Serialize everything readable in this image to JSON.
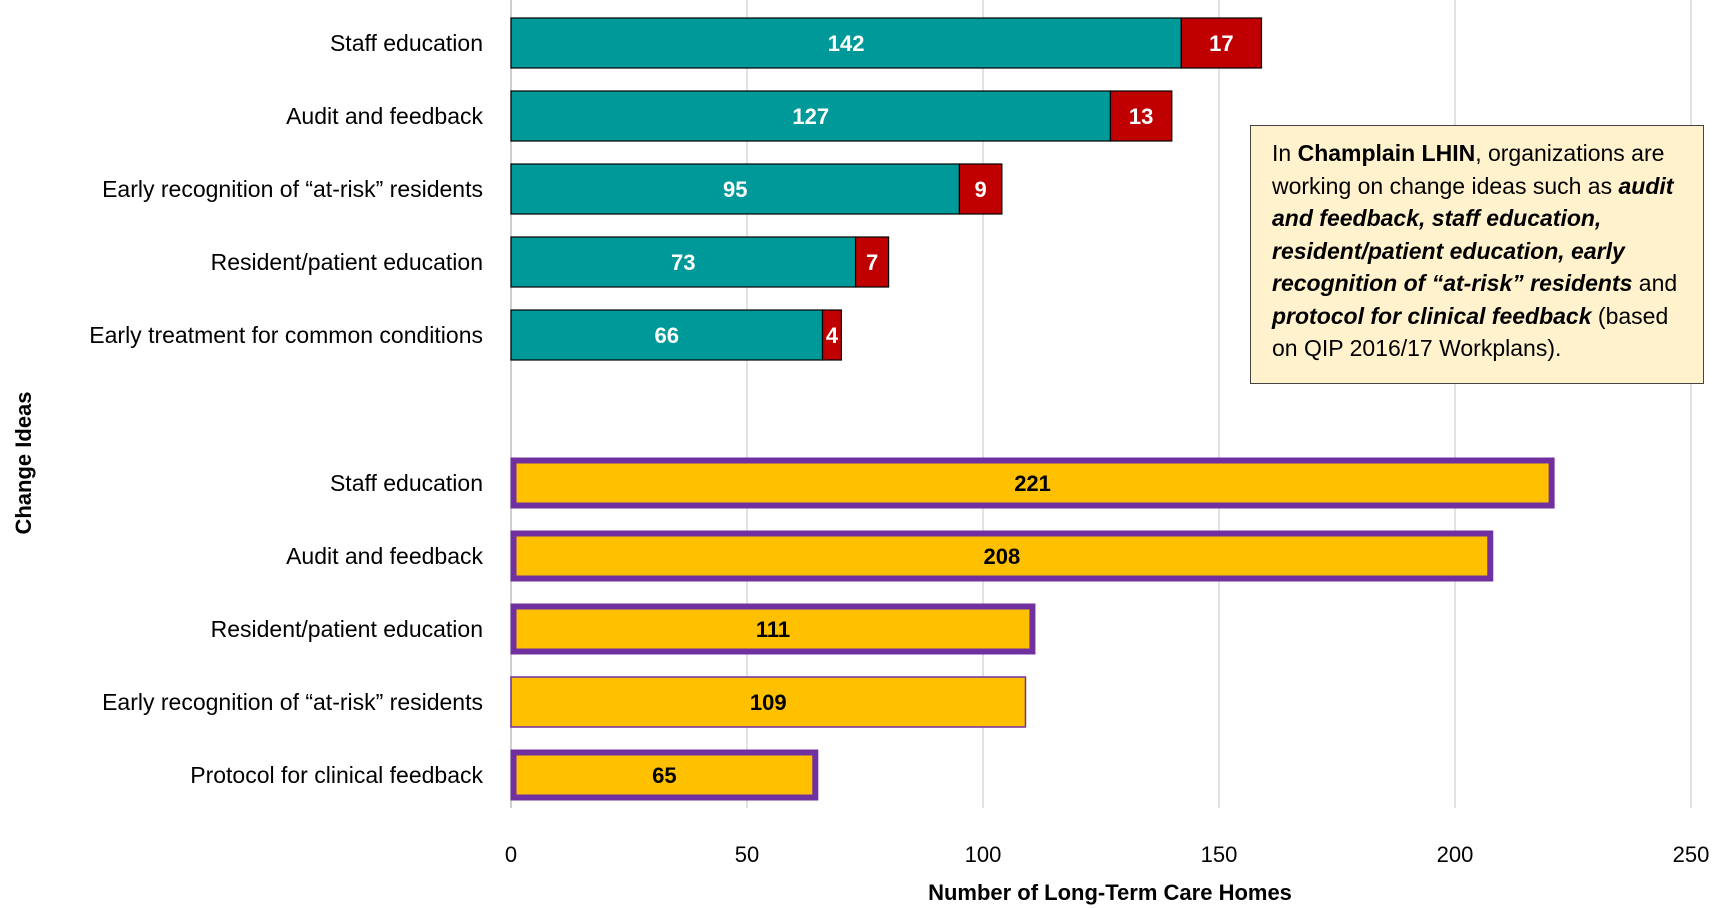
{
  "chart_data": {
    "type": "bar",
    "orientation": "horizontal",
    "xlabel": "Number of Long-Term Care Homes",
    "ylabel": "Change Ideas",
    "xlim": [
      0,
      250
    ],
    "xticks": [
      0,
      50,
      100,
      150,
      200,
      250
    ],
    "grid": true,
    "groups": [
      {
        "categories": [
          "Staff education",
          "Audit and feedback",
          "Early recognition of “at-risk” residents",
          "Resident/patient education",
          "Early treatment for common conditions"
        ],
        "series": [
          {
            "values": [
              142,
              127,
              95,
              73,
              66
            ],
            "color": "#009999"
          },
          {
            "values": [
              17,
              13,
              9,
              7,
              4
            ],
            "color": "#c00000"
          }
        ]
      },
      {
        "categories": [
          "Staff education",
          "Audit and feedback",
          "Resident/patient education",
          "Early recognition of “at-risk” residents",
          "Protocol for clinical feedback"
        ],
        "series": [
          {
            "values": [
              221,
              208,
              111,
              109,
              65
            ],
            "color": "#ffc000",
            "highlighted": [
              true,
              true,
              true,
              false,
              true
            ],
            "highlight_color": "#7030a0"
          }
        ]
      }
    ],
    "annotation": {
      "t1": "In ",
      "b1": "Champlain LHIN",
      "t2": ", organizations are working on change ideas such as ",
      "bi1": "audit and feedback, staff education, resident/patient education, early recognition of “at-risk” residents",
      "t3": " and ",
      "bi2": "protocol for clinical feedback",
      "t4": " (based on QIP 2016/17 Workplans)."
    }
  }
}
